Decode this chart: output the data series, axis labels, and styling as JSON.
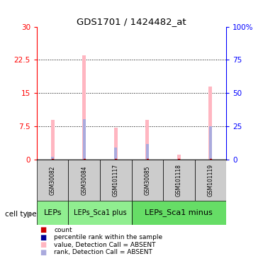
{
  "title": "GDS1701 / 1424482_at",
  "samples": [
    "GSM30082",
    "GSM30084",
    "GSM101117",
    "GSM30085",
    "GSM101118",
    "GSM101119"
  ],
  "value_absent": [
    9.0,
    23.5,
    7.2,
    9.0,
    1.2,
    16.5
  ],
  "rank_absent_left": [
    0.7,
    9.2,
    2.8,
    3.5,
    0.15,
    7.5
  ],
  "ylim_left": [
    0,
    30
  ],
  "ylim_right": [
    0,
    100
  ],
  "yticks_left": [
    0,
    7.5,
    15,
    22.5,
    30
  ],
  "ytick_labels_left": [
    "0",
    "7.5",
    "15",
    "22.5",
    "30"
  ],
  "yticks_right": [
    0,
    25,
    50,
    75,
    100
  ],
  "ytick_labels_right": [
    "0",
    "25",
    "50",
    "75",
    "100%"
  ],
  "color_value_absent": "#FFB6C1",
  "color_rank_absent": "#AAAADD",
  "color_count": "#CC0000",
  "color_rank_present": "#000099",
  "bar_width": 0.12,
  "rank_bar_width": 0.08,
  "cell_groups": [
    {
      "label": "LEPs",
      "start": 0,
      "end": 1,
      "color": "#90EE90",
      "fontsize": 8,
      "bold": false
    },
    {
      "label": "LEPs_Sca1 plus",
      "start": 1,
      "end": 3,
      "color": "#90EE90",
      "fontsize": 7,
      "bold": false
    },
    {
      "label": "LEPs_Sca1 minus",
      "start": 3,
      "end": 6,
      "color": "#66DD66",
      "fontsize": 8,
      "bold": false
    }
  ],
  "legend_items": [
    {
      "color": "#CC0000",
      "label": "count"
    },
    {
      "color": "#000099",
      "label": "percentile rank within the sample"
    },
    {
      "color": "#FFB6C1",
      "label": "value, Detection Call = ABSENT"
    },
    {
      "color": "#AAAADD",
      "label": "rank, Detection Call = ABSENT"
    }
  ],
  "bgcolor": "#FFFFFF"
}
